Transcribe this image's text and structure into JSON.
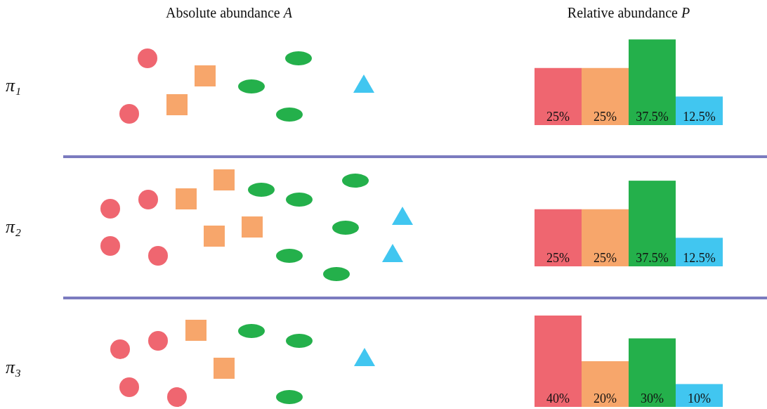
{
  "chart_data": [
    {
      "type": "bar",
      "title": "Relative abundance P",
      "annotations": [
        "Absolute abundance A"
      ],
      "ylabel": "π₁",
      "categories": [
        null,
        null,
        null,
        null
      ],
      "values": [
        25,
        25,
        37.5,
        12.5
      ],
      "colors": [
        "#ef6670",
        "#f7a66b",
        "#24b04b",
        "#41c6f0"
      ],
      "value_labels": [
        "25%",
        "25%",
        "37.5%",
        "12.5%"
      ]
    },
    {
      "type": "bar",
      "ylabel": "π₂",
      "categories": [
        null,
        null,
        null,
        null
      ],
      "values": [
        25,
        25,
        37.5,
        12.5
      ],
      "colors": [
        "#ef6670",
        "#f7a66b",
        "#24b04b",
        "#41c6f0"
      ],
      "value_labels": [
        "25%",
        "25%",
        "37.5%",
        "12.5%"
      ]
    },
    {
      "type": "bar",
      "ylabel": "π₃",
      "categories": [
        null,
        null,
        null,
        null
      ],
      "values": [
        40,
        20,
        30,
        10
      ],
      "colors": [
        "#ef6670",
        "#f7a66b",
        "#24b04b",
        "#41c6f0"
      ],
      "value_labels": [
        "40%",
        "20%",
        "30%",
        "10%"
      ]
    }
  ]
}
